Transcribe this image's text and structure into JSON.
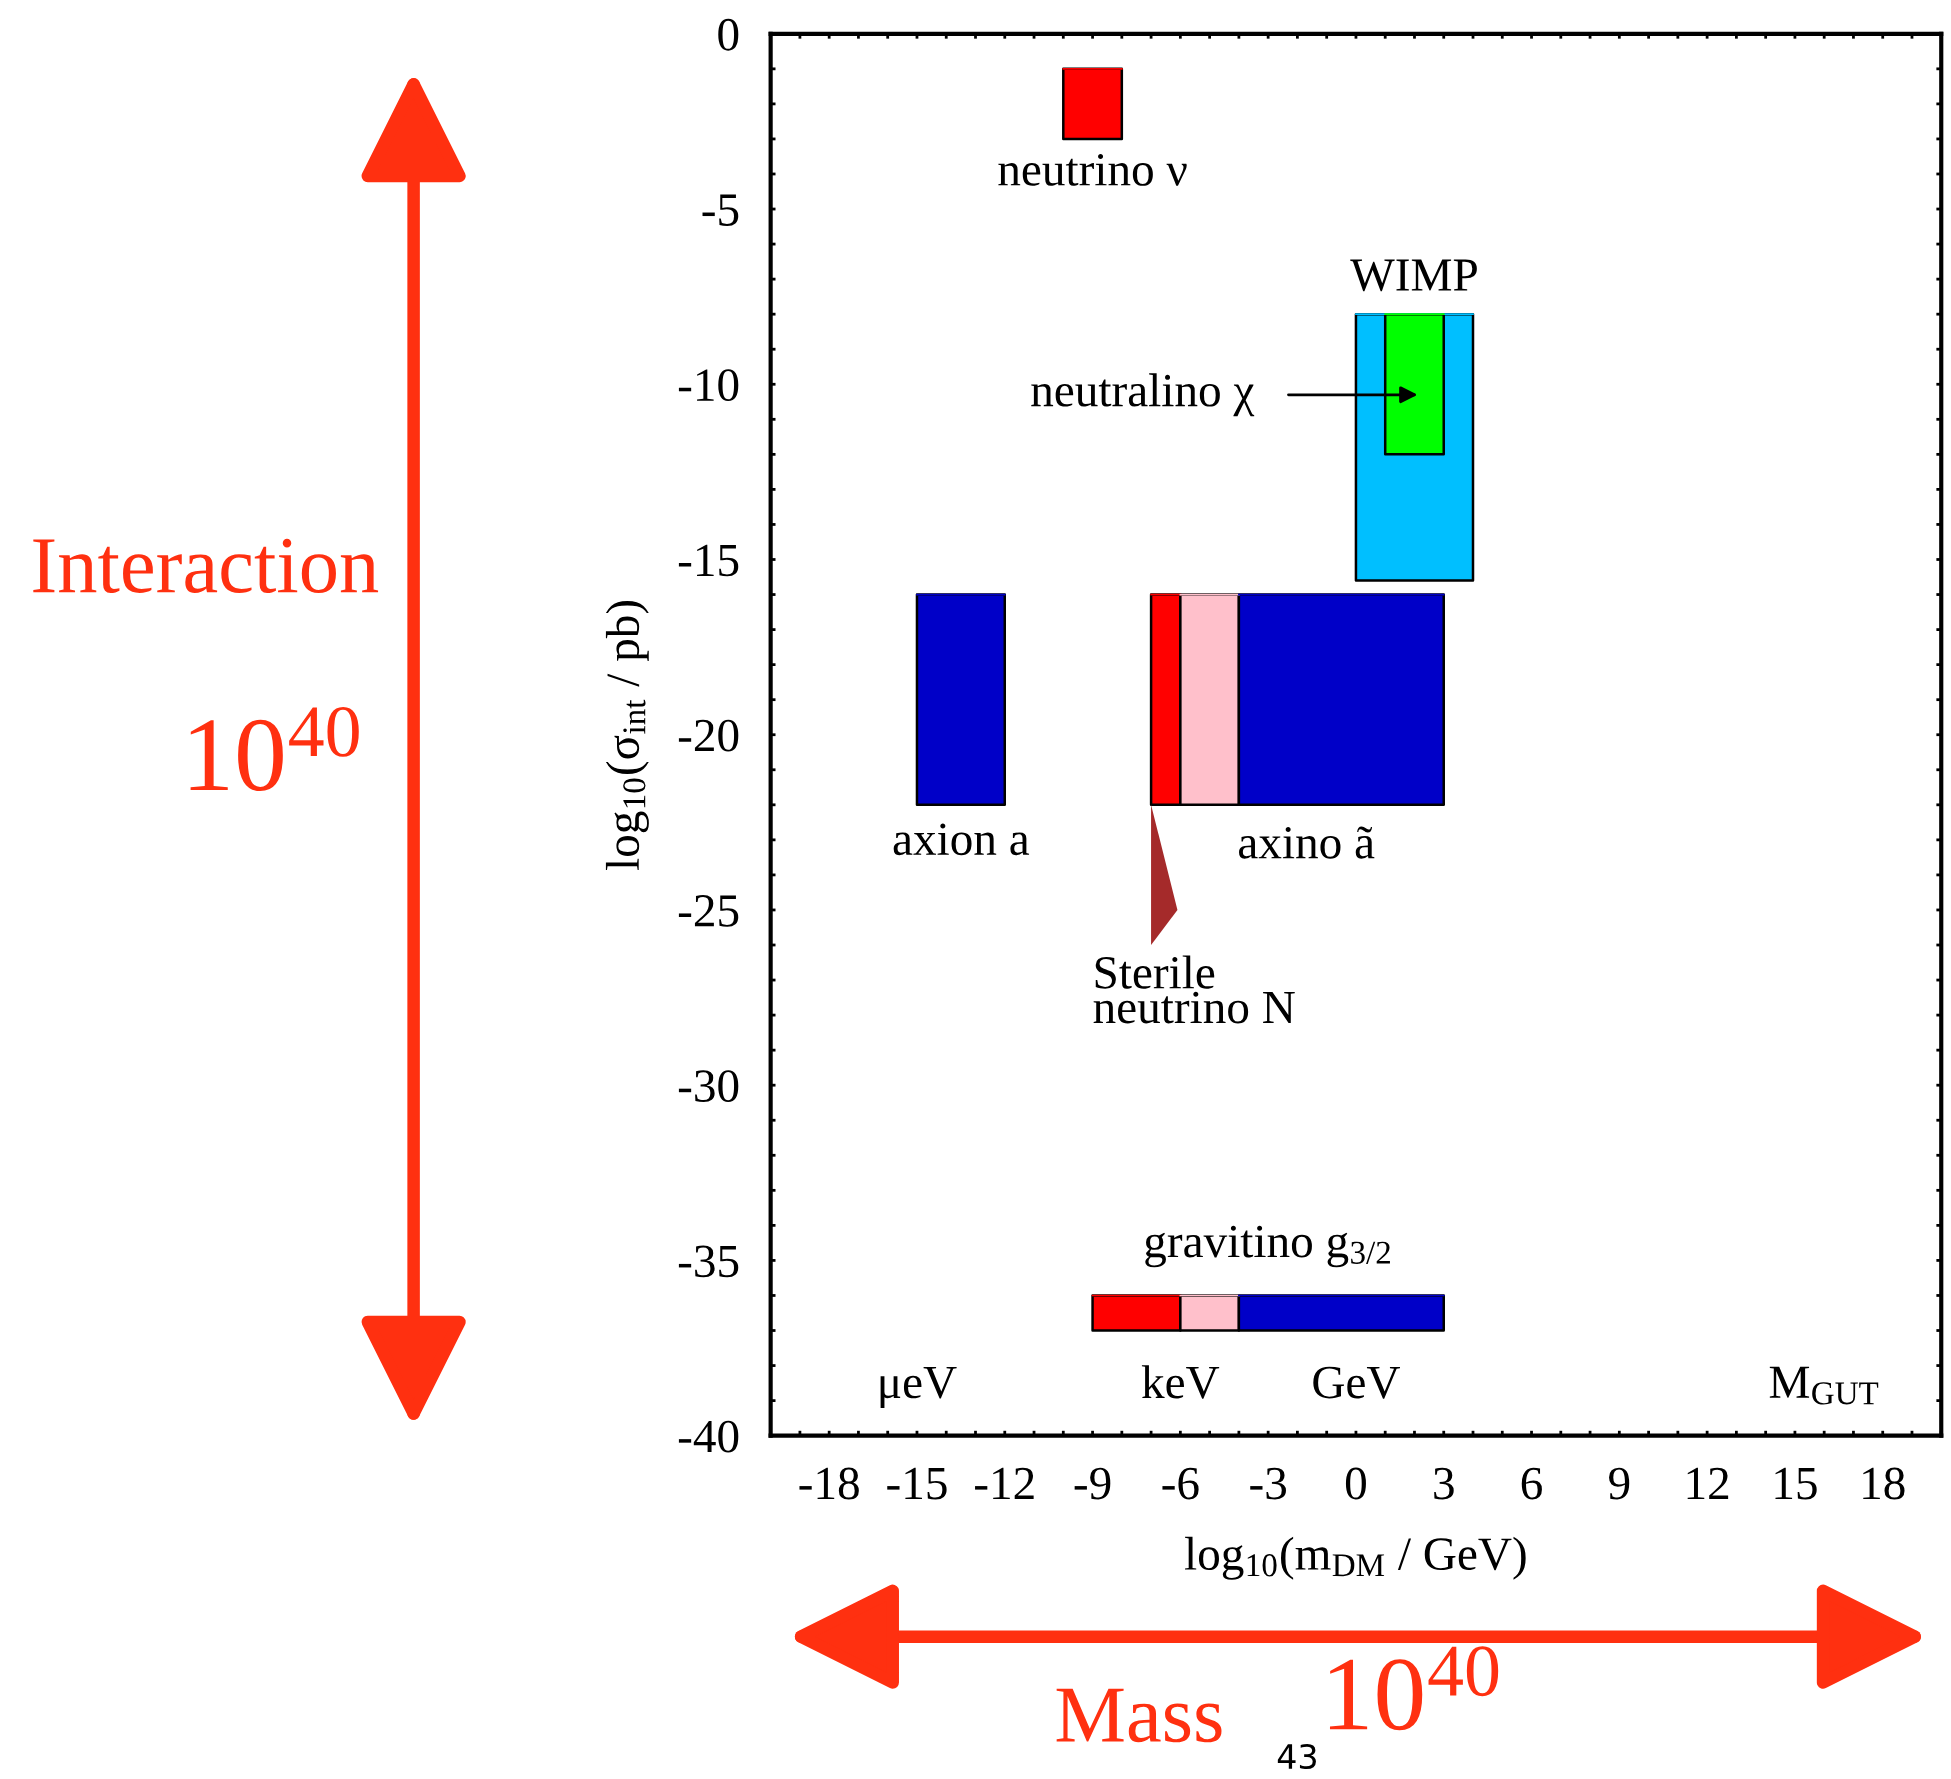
{
  "chart_data": {
    "type": "line",
    "xlabel": "log$_{10}$(m$_{DM}$ / GeV)",
    "ylabel": "log$_{10}$(σ$_{int}$ / pb)",
    "xlim": [
      -20,
      20
    ],
    "ylim": [
      -40,
      0
    ],
    "xticks": [
      {
        "value": -20,
        "label": null
      },
      {
        "value": -19,
        "label": null
      },
      -18,
      {
        "value": -17,
        "label": null
      },
      {
        "value": -16,
        "label": null
      },
      -15,
      {
        "value": -14,
        "label": null
      },
      {
        "value": -13,
        "label": null
      },
      -12,
      {
        "value": -11,
        "label": null
      },
      {
        "value": -10,
        "label": null
      },
      -9,
      {
        "value": -8,
        "label": null
      },
      {
        "value": -7,
        "label": null
      },
      -6,
      {
        "value": -5,
        "label": null
      },
      {
        "value": -4,
        "label": null
      },
      -3,
      {
        "value": -2,
        "label": null
      },
      {
        "value": -1,
        "label": null
      },
      0,
      {
        "value": 1,
        "label": null
      },
      {
        "value": 2,
        "label": null
      },
      3,
      {
        "value": 4,
        "label": null
      },
      {
        "value": 5,
        "label": null
      },
      6,
      {
        "value": 7,
        "label": null
      },
      {
        "value": 8,
        "label": null
      },
      9,
      {
        "value": 10,
        "label": null
      },
      {
        "value": 11,
        "label": null
      },
      12,
      {
        "value": 13,
        "label": null
      },
      {
        "value": 14,
        "label": null
      },
      15,
      {
        "value": 16,
        "label": null
      },
      {
        "value": 17,
        "label": null
      },
      18,
      {
        "value": 19,
        "label": null
      },
      {
        "value": 20,
        "label": null
      }
    ],
    "yticks": [
      -40,
      {
        "value": -39,
        "label": null
      },
      {
        "value": -38,
        "label": null
      },
      {
        "value": -37,
        "label": null
      },
      {
        "value": -36,
        "label": null
      },
      -35,
      {
        "value": -34,
        "label": null
      },
      {
        "value": -33,
        "label": null
      },
      {
        "value": -32,
        "label": null
      },
      {
        "value": -31,
        "label": null
      },
      -30,
      {
        "value": -29,
        "label": null
      },
      {
        "value": -28,
        "label": null
      },
      {
        "value": -27,
        "label": null
      },
      {
        "value": -26,
        "label": null
      },
      -25,
      {
        "value": -24,
        "label": null
      },
      {
        "value": -23,
        "label": null
      },
      {
        "value": -22,
        "label": null
      },
      {
        "value": -21,
        "label": null
      },
      -20,
      {
        "value": -19,
        "label": null
      },
      {
        "value": -18,
        "label": null
      },
      {
        "value": -17,
        "label": null
      },
      {
        "value": -16,
        "label": null
      },
      -15,
      {
        "value": -14,
        "label": null
      },
      {
        "value": -13,
        "label": null
      },
      {
        "value": -12,
        "label": null
      },
      {
        "value": -11,
        "label": null
      },
      -10,
      {
        "value": -9,
        "label": null
      },
      {
        "value": -8,
        "label": null
      },
      {
        "value": -7,
        "label": null
      },
      {
        "value": -6,
        "label": null
      },
      -5,
      {
        "value": -4,
        "label": null
      },
      {
        "value": -3,
        "label": null
      },
      {
        "value": -2,
        "label": null
      },
      {
        "value": -1,
        "label": null
      },
      0
    ],
    "series": [
      {
        "color": "#ff0000",
        "x": [
          -10,
          -8
        ],
        "values": [
          -1,
          -1
        ],
        "upper": [
          -1,
          -1
        ],
        "lower": [
          -3,
          -3
        ]
      },
      {
        "color": "#00bfff",
        "x": [
          0,
          4
        ],
        "values": [
          -8,
          -8
        ],
        "upper": [
          -8,
          -8
        ],
        "lower": [
          -15.6,
          -15.6
        ]
      },
      {
        "color": "#00ff00",
        "x": [
          1,
          3
        ],
        "values": [
          -8,
          -8
        ],
        "upper": [
          -8,
          -8
        ],
        "lower": [
          -12,
          -12
        ]
      },
      {
        "color": "#0000c8",
        "x": [
          -15,
          -12
        ],
        "values": [
          -16,
          -16
        ],
        "upper": [
          -16,
          -16
        ],
        "lower": [
          -22,
          -22
        ]
      },
      {
        "color": "#ff0000",
        "x": [
          -7,
          -6
        ],
        "values": [
          -16,
          -16
        ],
        "upper": [
          -16,
          -16
        ],
        "lower": [
          -22,
          -22
        ]
      },
      {
        "color": "#ffc0cb",
        "x": [
          -6,
          -4
        ],
        "values": [
          -16,
          -16
        ],
        "upper": [
          -16,
          -16
        ],
        "lower": [
          -22,
          -22
        ]
      },
      {
        "color": "#0000c8",
        "x": [
          -4,
          3
        ],
        "values": [
          -16,
          -16
        ],
        "upper": [
          -16,
          -16
        ],
        "lower": [
          -22,
          -22
        ]
      },
      {
        "color": "#ff0000",
        "x": [
          -9,
          -6
        ],
        "values": [
          -36,
          -36
        ],
        "upper": [
          -36,
          -36
        ],
        "lower": [
          -37,
          -37
        ]
      },
      {
        "color": "#ffc0cb",
        "x": [
          -6,
          -4
        ],
        "values": [
          -36,
          -36
        ],
        "upper": [
          -36,
          -36
        ],
        "lower": [
          -37,
          -37
        ]
      },
      {
        "color": "#0000c8",
        "x": [
          -4,
          3
        ],
        "values": [
          -36,
          -36
        ],
        "upper": [
          -36,
          -36
        ],
        "lower": [
          -37,
          -37
        ]
      }
    ],
    "annotations": [
      "neutrino ν",
      "WIMP",
      "neutralino χ",
      "axion a",
      "axino ã",
      "Sterile\nneutrino N",
      "gravitino g$_{3/2}$",
      "μeV",
      "keV",
      "GeV",
      "M$_{GUT}$",
      "Interaction",
      "10$^{40}$",
      "Mass",
      "10$^{40}$",
      "43"
    ]
  }
}
